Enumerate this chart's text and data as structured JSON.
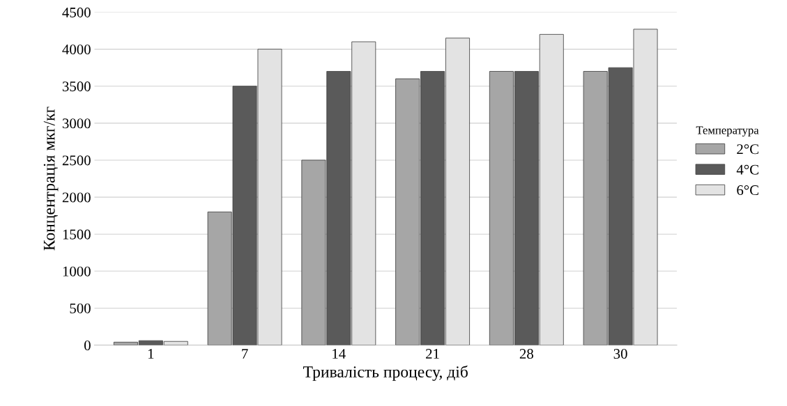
{
  "chart_data": {
    "type": "bar",
    "categories": [
      "1",
      "7",
      "14",
      "21",
      "28",
      "30"
    ],
    "series": [
      {
        "name": "2°C",
        "color": "#a6a6a6",
        "values": [
          40,
          1800,
          2500,
          3600,
          3700,
          3700
        ]
      },
      {
        "name": "4°C",
        "color": "#5a5a5a",
        "values": [
          60,
          3500,
          3700,
          3700,
          3700,
          3750
        ]
      },
      {
        "name": "6°C",
        "color": "#e3e3e3",
        "values": [
          50,
          4000,
          4100,
          4150,
          4200,
          4270
        ]
      }
    ],
    "xlabel": "Тривалість процесу, діб",
    "ylabel": "Концентрація мкг/кг",
    "legend_title": "Температура",
    "legend": "right",
    "ylim": [
      0,
      4500
    ],
    "yticks": [
      0,
      500,
      1000,
      1500,
      2000,
      2500,
      3000,
      3500,
      4000,
      4500
    ],
    "grid": "y"
  }
}
